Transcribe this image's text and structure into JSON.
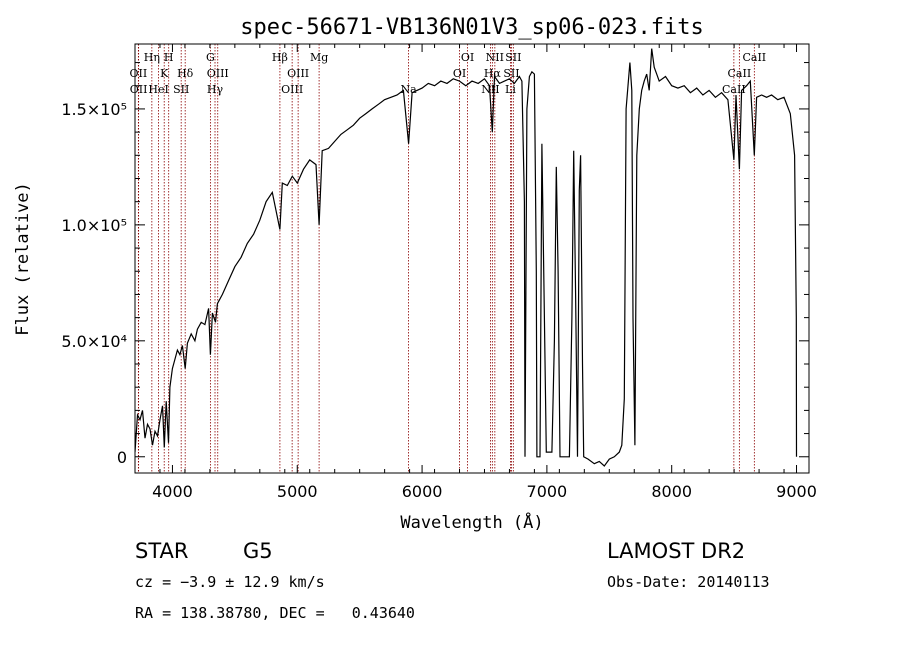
{
  "chart_data": {
    "type": "line",
    "title": "spec-56671-VB136N01V3_sp06-023.fits",
    "xlabel": "Wavelength (Å)",
    "ylabel": "Flux (relative)",
    "xlim": [
      3700,
      9100
    ],
    "ylim": [
      -7000,
      178000
    ],
    "xticks": [
      {
        "value": 4000,
        "label": "4000"
      },
      {
        "value": 5000,
        "label": "5000"
      },
      {
        "value": 6000,
        "label": "6000"
      },
      {
        "value": 7000,
        "label": "7000"
      },
      {
        "value": 8000,
        "label": "8000"
      },
      {
        "value": 9000,
        "label": "9000"
      }
    ],
    "yticks": [
      {
        "value": 0,
        "label": "0"
      },
      {
        "value": 50000,
        "label": "5.0×10⁴"
      },
      {
        "value": 100000,
        "label": "1.0×10⁵"
      },
      {
        "value": 150000,
        "label": "1.5×10⁵"
      }
    ],
    "spectral_lines": [
      {
        "wave": 3727,
        "name": "OII",
        "row": 2
      },
      {
        "wave": 3729,
        "name": "OII",
        "row": 3
      },
      {
        "wave": 3835,
        "name": "Hη",
        "row": 0
      },
      {
        "wave": 3889,
        "name": "HeI",
        "row": 3
      },
      {
        "wave": 3934,
        "name": "K",
        "row": 1
      },
      {
        "wave": 3970,
        "name": "H",
        "row": 0
      },
      {
        "wave": 4070,
        "name": "SII",
        "row": 3
      },
      {
        "wave": 4102,
        "name": "Hδ",
        "row": 1
      },
      {
        "wave": 4304,
        "name": "G",
        "row": 0
      },
      {
        "wave": 4341,
        "name": "Hγ",
        "row": 3
      },
      {
        "wave": 4363,
        "name": "OIII",
        "row": 1
      },
      {
        "wave": 4861,
        "name": "Hβ",
        "row": 0
      },
      {
        "wave": 4959,
        "name": "OIII",
        "row": 3
      },
      {
        "wave": 5007,
        "name": "OIII",
        "row": 1
      },
      {
        "wave": 5175,
        "name": "Mg",
        "row": 0
      },
      {
        "wave": 5892,
        "name": "Na",
        "row": 3
      },
      {
        "wave": 6300,
        "name": "OI",
        "row": 1
      },
      {
        "wave": 6364,
        "name": "OI",
        "row": 0
      },
      {
        "wave": 6548,
        "name": "NII",
        "row": 3
      },
      {
        "wave": 6563,
        "name": "Hα",
        "row": 1
      },
      {
        "wave": 6583,
        "name": "NII",
        "row": 0
      },
      {
        "wave": 6708,
        "name": "Li",
        "row": 3
      },
      {
        "wave": 6716,
        "name": "SII",
        "row": 1
      },
      {
        "wave": 6731,
        "name": "SII",
        "row": 0
      },
      {
        "wave": 8498,
        "name": "CaII",
        "row": 3
      },
      {
        "wave": 8542,
        "name": "CaII",
        "row": 1
      },
      {
        "wave": 8662,
        "name": "CaII",
        "row": 0
      }
    ],
    "series": [
      {
        "points": [
          [
            3700,
            2000
          ],
          [
            3720,
            18000
          ],
          [
            3740,
            16000
          ],
          [
            3760,
            20000
          ],
          [
            3780,
            8000
          ],
          [
            3800,
            14000
          ],
          [
            3820,
            12000
          ],
          [
            3840,
            5000
          ],
          [
            3860,
            11000
          ],
          [
            3880,
            9000
          ],
          [
            3900,
            16000
          ],
          [
            3920,
            22000
          ],
          [
            3935,
            4000
          ],
          [
            3950,
            24000
          ],
          [
            3968,
            6000
          ],
          [
            3980,
            30000
          ],
          [
            4000,
            38000
          ],
          [
            4020,
            42000
          ],
          [
            4040,
            46000
          ],
          [
            4060,
            44000
          ],
          [
            4080,
            48000
          ],
          [
            4102,
            38000
          ],
          [
            4120,
            49000
          ],
          [
            4150,
            53000
          ],
          [
            4180,
            50000
          ],
          [
            4200,
            55000
          ],
          [
            4230,
            58000
          ],
          [
            4260,
            57000
          ],
          [
            4290,
            64000
          ],
          [
            4304,
            44000
          ],
          [
            4320,
            62000
          ],
          [
            4345,
            58000
          ],
          [
            4360,
            66000
          ],
          [
            4400,
            70000
          ],
          [
            4450,
            76000
          ],
          [
            4500,
            82000
          ],
          [
            4550,
            86000
          ],
          [
            4600,
            92000
          ],
          [
            4650,
            96000
          ],
          [
            4700,
            102000
          ],
          [
            4750,
            110000
          ],
          [
            4800,
            114000
          ],
          [
            4861,
            98000
          ],
          [
            4880,
            118000
          ],
          [
            4920,
            117000
          ],
          [
            4960,
            121000
          ],
          [
            5000,
            118000
          ],
          [
            5050,
            124000
          ],
          [
            5100,
            128000
          ],
          [
            5150,
            126000
          ],
          [
            5175,
            100000
          ],
          [
            5200,
            132000
          ],
          [
            5250,
            133000
          ],
          [
            5300,
            136000
          ],
          [
            5350,
            139000
          ],
          [
            5400,
            141000
          ],
          [
            5450,
            143000
          ],
          [
            5500,
            146000
          ],
          [
            5550,
            148000
          ],
          [
            5600,
            150000
          ],
          [
            5650,
            152000
          ],
          [
            5700,
            154000
          ],
          [
            5750,
            155000
          ],
          [
            5800,
            156000
          ],
          [
            5850,
            158000
          ],
          [
            5892,
            135000
          ],
          [
            5920,
            157000
          ],
          [
            6000,
            159000
          ],
          [
            6050,
            161000
          ],
          [
            6100,
            160000
          ],
          [
            6150,
            162000
          ],
          [
            6200,
            161000
          ],
          [
            6250,
            163000
          ],
          [
            6300,
            162000
          ],
          [
            6350,
            160000
          ],
          [
            6400,
            162000
          ],
          [
            6450,
            161000
          ],
          [
            6500,
            163000
          ],
          [
            6540,
            160000
          ],
          [
            6563,
            140000
          ],
          [
            6580,
            164000
          ],
          [
            6620,
            161000
          ],
          [
            6660,
            162000
          ],
          [
            6700,
            163000
          ],
          [
            6740,
            161000
          ],
          [
            6780,
            164000
          ],
          [
            6800,
            162000
          ],
          [
            6820,
            110000
          ],
          [
            6825,
            0
          ],
          [
            6840,
            150000
          ],
          [
            6860,
            164000
          ],
          [
            6880,
            166000
          ],
          [
            6900,
            165000
          ],
          [
            6915,
            80000
          ],
          [
            6920,
            0
          ],
          [
            6945,
            0
          ],
          [
            6960,
            135000
          ],
          [
            6980,
            60000
          ],
          [
            6995,
            2000
          ],
          [
            7040,
            2000
          ],
          [
            7060,
            50000
          ],
          [
            7075,
            125000
          ],
          [
            7090,
            80000
          ],
          [
            7105,
            0
          ],
          [
            7180,
            0
          ],
          [
            7200,
            60000
          ],
          [
            7215,
            132000
          ],
          [
            7230,
            70000
          ],
          [
            7245,
            0
          ],
          [
            7260,
            115000
          ],
          [
            7270,
            130000
          ],
          [
            7285,
            40000
          ],
          [
            7295,
            0
          ],
          [
            7330,
            -1000
          ],
          [
            7380,
            -3000
          ],
          [
            7420,
            -2000
          ],
          [
            7460,
            -4000
          ],
          [
            7500,
            -1000
          ],
          [
            7540,
            0
          ],
          [
            7580,
            2000
          ],
          [
            7600,
            5000
          ],
          [
            7620,
            25000
          ],
          [
            7635,
            150000
          ],
          [
            7650,
            160000
          ],
          [
            7665,
            170000
          ],
          [
            7680,
            158000
          ],
          [
            7690,
            60000
          ],
          [
            7705,
            5000
          ],
          [
            7720,
            130000
          ],
          [
            7740,
            150000
          ],
          [
            7760,
            158000
          ],
          [
            7780,
            162000
          ],
          [
            7800,
            165000
          ],
          [
            7820,
            158000
          ],
          [
            7840,
            176000
          ],
          [
            7860,
            168000
          ],
          [
            7880,
            165000
          ],
          [
            7900,
            162000
          ],
          [
            7950,
            164000
          ],
          [
            8000,
            160000
          ],
          [
            8050,
            159000
          ],
          [
            8100,
            160000
          ],
          [
            8150,
            157000
          ],
          [
            8200,
            159000
          ],
          [
            8250,
            156000
          ],
          [
            8300,
            158000
          ],
          [
            8350,
            155000
          ],
          [
            8400,
            157000
          ],
          [
            8450,
            154000
          ],
          [
            8498,
            128000
          ],
          [
            8515,
            156000
          ],
          [
            8542,
            124000
          ],
          [
            8560,
            158000
          ],
          [
            8600,
            160000
          ],
          [
            8630,
            162000
          ],
          [
            8662,
            130000
          ],
          [
            8680,
            155000
          ],
          [
            8720,
            156000
          ],
          [
            8760,
            155000
          ],
          [
            8800,
            156000
          ],
          [
            8850,
            154000
          ],
          [
            8900,
            155000
          ],
          [
            8950,
            148000
          ],
          [
            8985,
            130000
          ],
          [
            8998,
            60000
          ],
          [
            9000,
            0
          ]
        ]
      }
    ]
  },
  "footer": {
    "class_label": "STAR",
    "subclass": "G5",
    "cz": "cz = −3.9 ± 12.9 km/s",
    "radec": "RA = 138.38780, DEC =   0.43640",
    "survey": "LAMOST DR2",
    "obs_date": "Obs-Date: 20140113"
  },
  "colors": {
    "line": "#000000",
    "marker": "#8b0000"
  }
}
